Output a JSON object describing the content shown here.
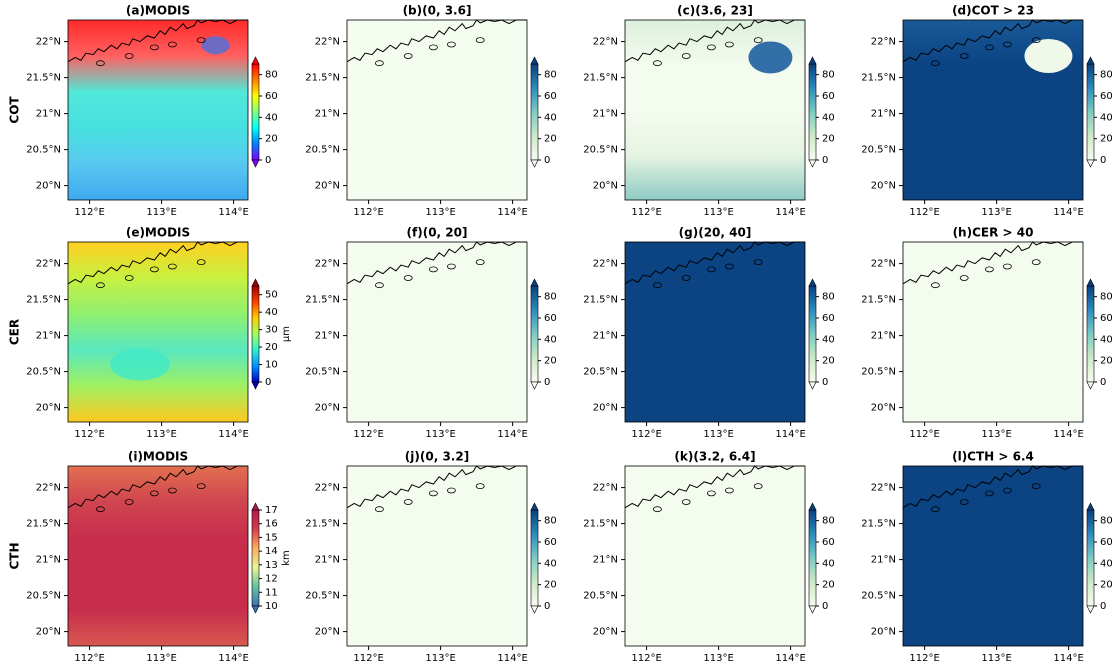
{
  "row_labels": [
    "COT",
    "CER",
    "CTH"
  ],
  "lon_ticks": [
    {
      "value": 112,
      "label": "112°E"
    },
    {
      "value": 113,
      "label": "113°E"
    },
    {
      "value": 114,
      "label": "114°E"
    }
  ],
  "lat_ticks": [
    {
      "value": 20,
      "label": "20°N"
    },
    {
      "value": 20.5,
      "label": "20.5°N"
    },
    {
      "value": 21,
      "label": "21°N"
    },
    {
      "value": 21.5,
      "label": "21.5°N"
    },
    {
      "value": 22,
      "label": "22°N"
    }
  ],
  "lon_lim": [
    111.7,
    114.2
  ],
  "lat_lim": [
    19.8,
    22.3
  ],
  "panels": [
    {
      "title": "(a)MODIS",
      "clim": [
        0,
        90
      ],
      "cticks": [
        0,
        20,
        40,
        60,
        80
      ],
      "cmap": [
        "#7f00ff",
        "#0080ff",
        "#00ffff",
        "#80ff80",
        "#ffff00",
        "#ff8000",
        "#ff0000"
      ],
      "map_colors": [
        "#ff2a2a",
        "#ff6060",
        "#50e8d8",
        "#48e0e0",
        "#58c8f0",
        "#3fa8f0"
      ]
    },
    {
      "title": "(b)(0, 3.6]",
      "clim": [
        0,
        90
      ],
      "cticks": [
        0,
        20,
        40,
        60,
        80
      ],
      "cmap": [
        "#f7fcf0",
        "#ccebc5",
        "#7bccc4",
        "#2b8cbe",
        "#084081"
      ],
      "map_colors": [
        "#f4fbef",
        "#f4fbef"
      ]
    },
    {
      "title": "(c)(3.6, 23]",
      "clim": [
        0,
        90
      ],
      "cticks": [
        0,
        20,
        40,
        60,
        80
      ],
      "cmap": [
        "#f7fcf0",
        "#ccebc5",
        "#7bccc4",
        "#2b8cbe",
        "#084081"
      ],
      "map_colors": [
        "#dcf0dc",
        "#f4fbef",
        "#f4fbef",
        "#e6f4e2",
        "#8fcbc4"
      ]
    },
    {
      "title": "(d)COT > 23",
      "clim": [
        0,
        90
      ],
      "cticks": [
        0,
        20,
        40,
        60,
        80
      ],
      "cmap": [
        "#f7fcf0",
        "#ccebc5",
        "#7bccc4",
        "#2b8cbe",
        "#084081"
      ],
      "map_colors": [
        "#1a5a98",
        "#0b4383",
        "#0b4383",
        "#0b4383",
        "#0b4383"
      ]
    },
    {
      "title": "(e)MODIS",
      "clim": [
        0,
        55
      ],
      "cticks": [
        0,
        10,
        20,
        30,
        40,
        50
      ],
      "cbar_label": "μm",
      "cmap": [
        "#0000c0",
        "#0090ff",
        "#30f0d0",
        "#a0ff60",
        "#ffd000",
        "#ff4000",
        "#a00000"
      ],
      "map_colors": [
        "#ffd020",
        "#c8f040",
        "#90f070",
        "#58e8c0",
        "#a0f060",
        "#ffc820"
      ]
    },
    {
      "title": "(f)(0, 20]",
      "clim": [
        0,
        90
      ],
      "cticks": [
        0,
        20,
        40,
        60,
        80
      ],
      "cmap": [
        "#f7fcf0",
        "#ccebc5",
        "#7bccc4",
        "#2b8cbe",
        "#084081"
      ],
      "map_colors": [
        "#f4fbef",
        "#f4fbef"
      ]
    },
    {
      "title": "(g)(20, 40]",
      "clim": [
        0,
        90
      ],
      "cticks": [
        0,
        20,
        40,
        60,
        80
      ],
      "cmap": [
        "#f7fcf0",
        "#ccebc5",
        "#7bccc4",
        "#2b8cbe",
        "#084081"
      ],
      "map_colors": [
        "#0b4383",
        "#0b4383"
      ]
    },
    {
      "title": "(h)CER > 40",
      "clim": [
        0,
        90
      ],
      "cticks": [
        0,
        20,
        40,
        60,
        80
      ],
      "cmap": [
        "#f7fcf0",
        "#ccebc5",
        "#7bccc4",
        "#2b8cbe",
        "#084081"
      ],
      "map_colors": [
        "#f4fbef",
        "#f4fbef"
      ]
    },
    {
      "title": "(i)MODIS",
      "clim": [
        10,
        17
      ],
      "cticks": [
        10,
        11,
        12,
        13,
        14,
        15,
        16,
        17
      ],
      "cbar_label": "km",
      "cmap": [
        "#3f6fb0",
        "#66c2a5",
        "#e6f598",
        "#fdae61",
        "#d53e4f",
        "#b0184a"
      ],
      "map_colors": [
        "#e27050",
        "#d04550",
        "#c82e4c",
        "#c82e4c",
        "#c82e4c",
        "#d85850"
      ]
    },
    {
      "title": "(j)(0, 3.2]",
      "clim": [
        0,
        90
      ],
      "cticks": [
        0,
        20,
        40,
        60,
        80
      ],
      "cmap": [
        "#f7fcf0",
        "#ccebc5",
        "#7bccc4",
        "#2b8cbe",
        "#084081"
      ],
      "map_colors": [
        "#f4fbef",
        "#f4fbef"
      ]
    },
    {
      "title": "(k)(3.2, 6.4]",
      "clim": [
        0,
        90
      ],
      "cticks": [
        0,
        20,
        40,
        60,
        80
      ],
      "cmap": [
        "#f7fcf0",
        "#ccebc5",
        "#7bccc4",
        "#2b8cbe",
        "#084081"
      ],
      "map_colors": [
        "#f4fbef",
        "#f4fbef"
      ]
    },
    {
      "title": "(l)CTH > 6.4",
      "clim": [
        0,
        90
      ],
      "cticks": [
        0,
        20,
        40,
        60,
        80
      ],
      "cmap": [
        "#f7fcf0",
        "#ccebc5",
        "#7bccc4",
        "#2b8cbe",
        "#084081"
      ],
      "map_colors": [
        "#0b4383",
        "#0b4383"
      ]
    }
  ]
}
